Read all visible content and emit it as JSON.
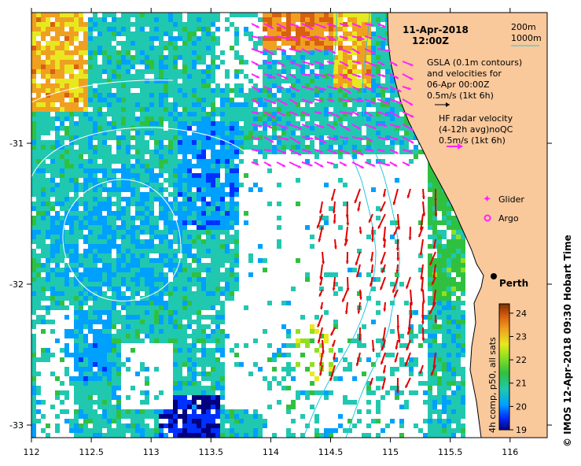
{
  "title": {
    "date": "11-Apr-2018",
    "time": "12:00Z"
  },
  "axes": {
    "x_ticks": [
      {
        "value": 112,
        "label": "112"
      },
      {
        "value": 112.5,
        "label": "112.5"
      },
      {
        "value": 113,
        "label": "113"
      },
      {
        "value": 113.5,
        "label": "113.5"
      },
      {
        "value": 114,
        "label": "114"
      },
      {
        "value": 114.5,
        "label": "114.5"
      },
      {
        "value": 115,
        "label": "115"
      },
      {
        "value": 115.5,
        "label": "115.5"
      },
      {
        "value": 116,
        "label": "116"
      }
    ],
    "y_ticks": [
      {
        "value": -31,
        "label": "-31"
      },
      {
        "value": -32,
        "label": "-32"
      },
      {
        "value": -33,
        "label": "-33"
      }
    ],
    "lon_range": [
      112,
      116.3
    ],
    "lat_range": [
      -33.1,
      -30.1
    ]
  },
  "legend": {
    "depth_200": "200m",
    "depth_1000": "1000m",
    "gsla_line1": "GSLA (0.1m contours)",
    "gsla_line2": "and velocities for",
    "gsla_line3": "06-Apr 00:00Z",
    "gsla_scale": "0.5m/s (1kt 6h)",
    "hf_line1": "HF radar velocity",
    "hf_line2": "(4-12h avg)noQC",
    "hf_scale": "0.5m/s (1kt 6h)",
    "glider": "Glider",
    "argo": "Argo"
  },
  "place": {
    "name": "Perth",
    "lon": 115.86,
    "lat": -31.95
  },
  "colorbar": {
    "title": "4h comp, p50, all sats",
    "min": 19,
    "max": 24.4,
    "ticks": [
      {
        "value": 19,
        "label": "19"
      },
      {
        "value": 20,
        "label": "20"
      },
      {
        "value": 21,
        "label": "21"
      },
      {
        "value": 22,
        "label": "22"
      },
      {
        "value": 23,
        "label": "23"
      },
      {
        "value": 24,
        "label": "24"
      }
    ]
  },
  "credit": "© IMOS 12-Apr-2018 09:30 Hobart Time",
  "colors": {
    "land": "#f9c89b",
    "hf_arrow": "#e00000",
    "gsla_arrow": "#ff22ff",
    "isobath": "#22c8e0",
    "contour": "#ffffff"
  }
}
